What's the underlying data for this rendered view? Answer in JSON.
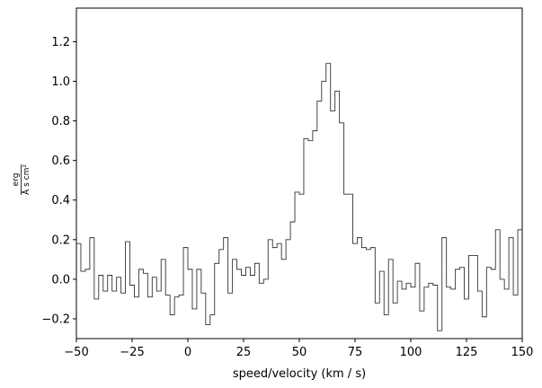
{
  "chart_data": {
    "type": "line",
    "style": "step",
    "title": "",
    "xlabel": "speed/velocity (km / s)",
    "ylabel_numerator": "erg",
    "ylabel_denominator": "Å s cm²",
    "xlim": [
      -50,
      150
    ],
    "ylim": [
      -0.3,
      1.37
    ],
    "xticks": [
      -50,
      -25,
      0,
      25,
      50,
      75,
      100,
      125,
      150
    ],
    "xtick_labels": [
      "−50",
      "−25",
      "0",
      "25",
      "50",
      "75",
      "100",
      "125",
      "150"
    ],
    "yticks": [
      -0.2,
      0.0,
      0.2,
      0.4,
      0.6,
      0.8,
      1.0,
      1.2
    ],
    "ytick_labels": [
      "−0.2",
      "0.0",
      "0.2",
      "0.4",
      "0.6",
      "0.8",
      "1.0",
      "1.2"
    ],
    "grid": false,
    "line_color": "#333333",
    "x_start": -50,
    "bin_width": 2,
    "values": [
      0.18,
      0.04,
      0.05,
      0.21,
      -0.1,
      0.02,
      -0.06,
      0.02,
      -0.06,
      0.01,
      -0.07,
      0.19,
      -0.03,
      -0.09,
      0.05,
      0.03,
      -0.09,
      0.01,
      -0.06,
      0.1,
      -0.08,
      -0.18,
      -0.09,
      -0.08,
      0.16,
      0.05,
      -0.15,
      0.05,
      -0.07,
      -0.23,
      -0.18,
      0.08,
      0.15,
      0.21,
      -0.07,
      0.1,
      0.05,
      0.02,
      0.06,
      0.02,
      0.08,
      -0.02,
      0.0,
      0.2,
      0.16,
      0.18,
      0.1,
      0.2,
      0.29,
      0.44,
      0.43,
      0.71,
      0.7,
      0.75,
      0.9,
      1.0,
      1.09,
      0.85,
      0.95,
      0.79,
      0.43,
      0.43,
      0.18,
      0.21,
      0.16,
      0.15,
      0.16,
      -0.12,
      0.04,
      -0.18,
      0.1,
      -0.12,
      -0.01,
      -0.05,
      -0.02,
      -0.04,
      0.08,
      -0.16,
      -0.04,
      -0.02,
      -0.03,
      -0.26,
      0.21,
      -0.04,
      -0.05,
      0.05,
      0.06,
      -0.1,
      0.12,
      0.12,
      -0.06,
      -0.19,
      0.06,
      0.05,
      0.25,
      0.0,
      -0.05,
      0.21,
      -0.08,
      0.25
    ]
  }
}
